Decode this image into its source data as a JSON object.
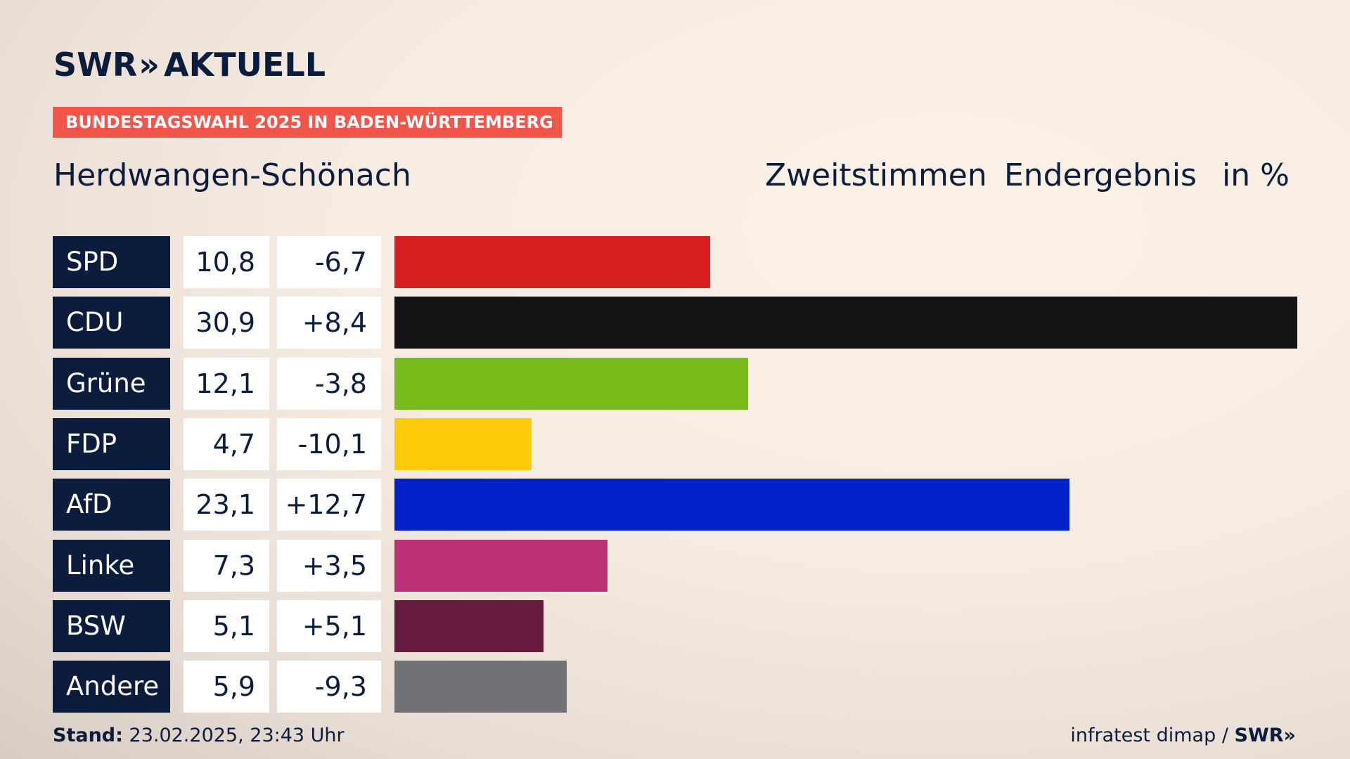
{
  "header": {
    "logo_swr": "SWR",
    "logo_arrows": "»",
    "logo_aktuell": "AKTUELL",
    "badge": "BUNDESTAGSWAHL 2025 IN BADEN-WÜRTTEMBERG",
    "place": "Herdwangen-Schönach",
    "col_1": "Zweitstimmen",
    "col_2": "Endergebnis",
    "col_3": "in %"
  },
  "footer": {
    "stand_label": "Stand:",
    "stand_value": "23.02.2025, 23:43 Uhr",
    "source": "infratest dimap /",
    "source_brand": "SWR",
    "source_arrows": "»"
  },
  "colors": {
    "navy": "#0c1c3c",
    "badge": "#f2564b"
  },
  "chart_data": {
    "type": "bar",
    "orientation": "horizontal",
    "categories": [
      "SPD",
      "CDU",
      "Grüne",
      "FDP",
      "AfD",
      "Linke",
      "BSW",
      "Andere"
    ],
    "values": [
      10.8,
      30.9,
      12.1,
      4.7,
      23.1,
      7.3,
      5.1,
      5.9
    ],
    "labels": [
      "10,8",
      "30,9",
      "12,1",
      "4,7",
      "23,1",
      "7,3",
      "5,1",
      "5,9"
    ],
    "changes": [
      "-6,7",
      "+8,4",
      "-3,8",
      "-10,1",
      "+12,7",
      "+3,5",
      "+5,1",
      "-9,3"
    ],
    "colors": [
      "#d81f20",
      "#141414",
      "#78bc1b",
      "#fecc0a",
      "#0021c8",
      "#bc3075",
      "#661a3d",
      "#717275"
    ],
    "xlim": [
      0,
      30.9
    ],
    "grid": false
  }
}
